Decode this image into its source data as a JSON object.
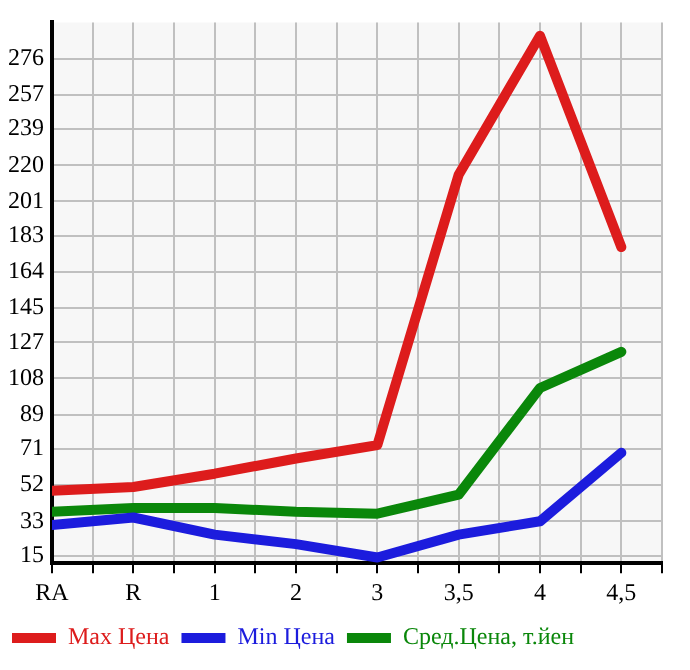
{
  "chart_data": {
    "type": "line",
    "categories": [
      "RA",
      "R",
      "1",
      "2",
      "3",
      "3,5",
      "4",
      "4,5"
    ],
    "series": [
      {
        "name": "Max Цена",
        "color": "#dd1c1c",
        "values": [
          49,
          51,
          58,
          66,
          73,
          215,
          288,
          177
        ]
      },
      {
        "name": "Min Цена",
        "color": "#1c1cdd",
        "values": [
          31,
          35,
          26,
          21,
          14,
          26,
          33,
          69
        ]
      },
      {
        "name": "Сред.Цена, т.йен",
        "color": "#0a870a",
        "values": [
          38,
          40,
          40,
          38,
          37,
          47,
          103,
          122
        ]
      }
    ],
    "ylim": [
      11,
      295
    ],
    "yticks": [
      15,
      33,
      52,
      71,
      89,
      108,
      127,
      145,
      164,
      183,
      201,
      220,
      239,
      257,
      276
    ],
    "grid": true,
    "legend": "bottom",
    "marker": "none",
    "line_style": "solid"
  }
}
